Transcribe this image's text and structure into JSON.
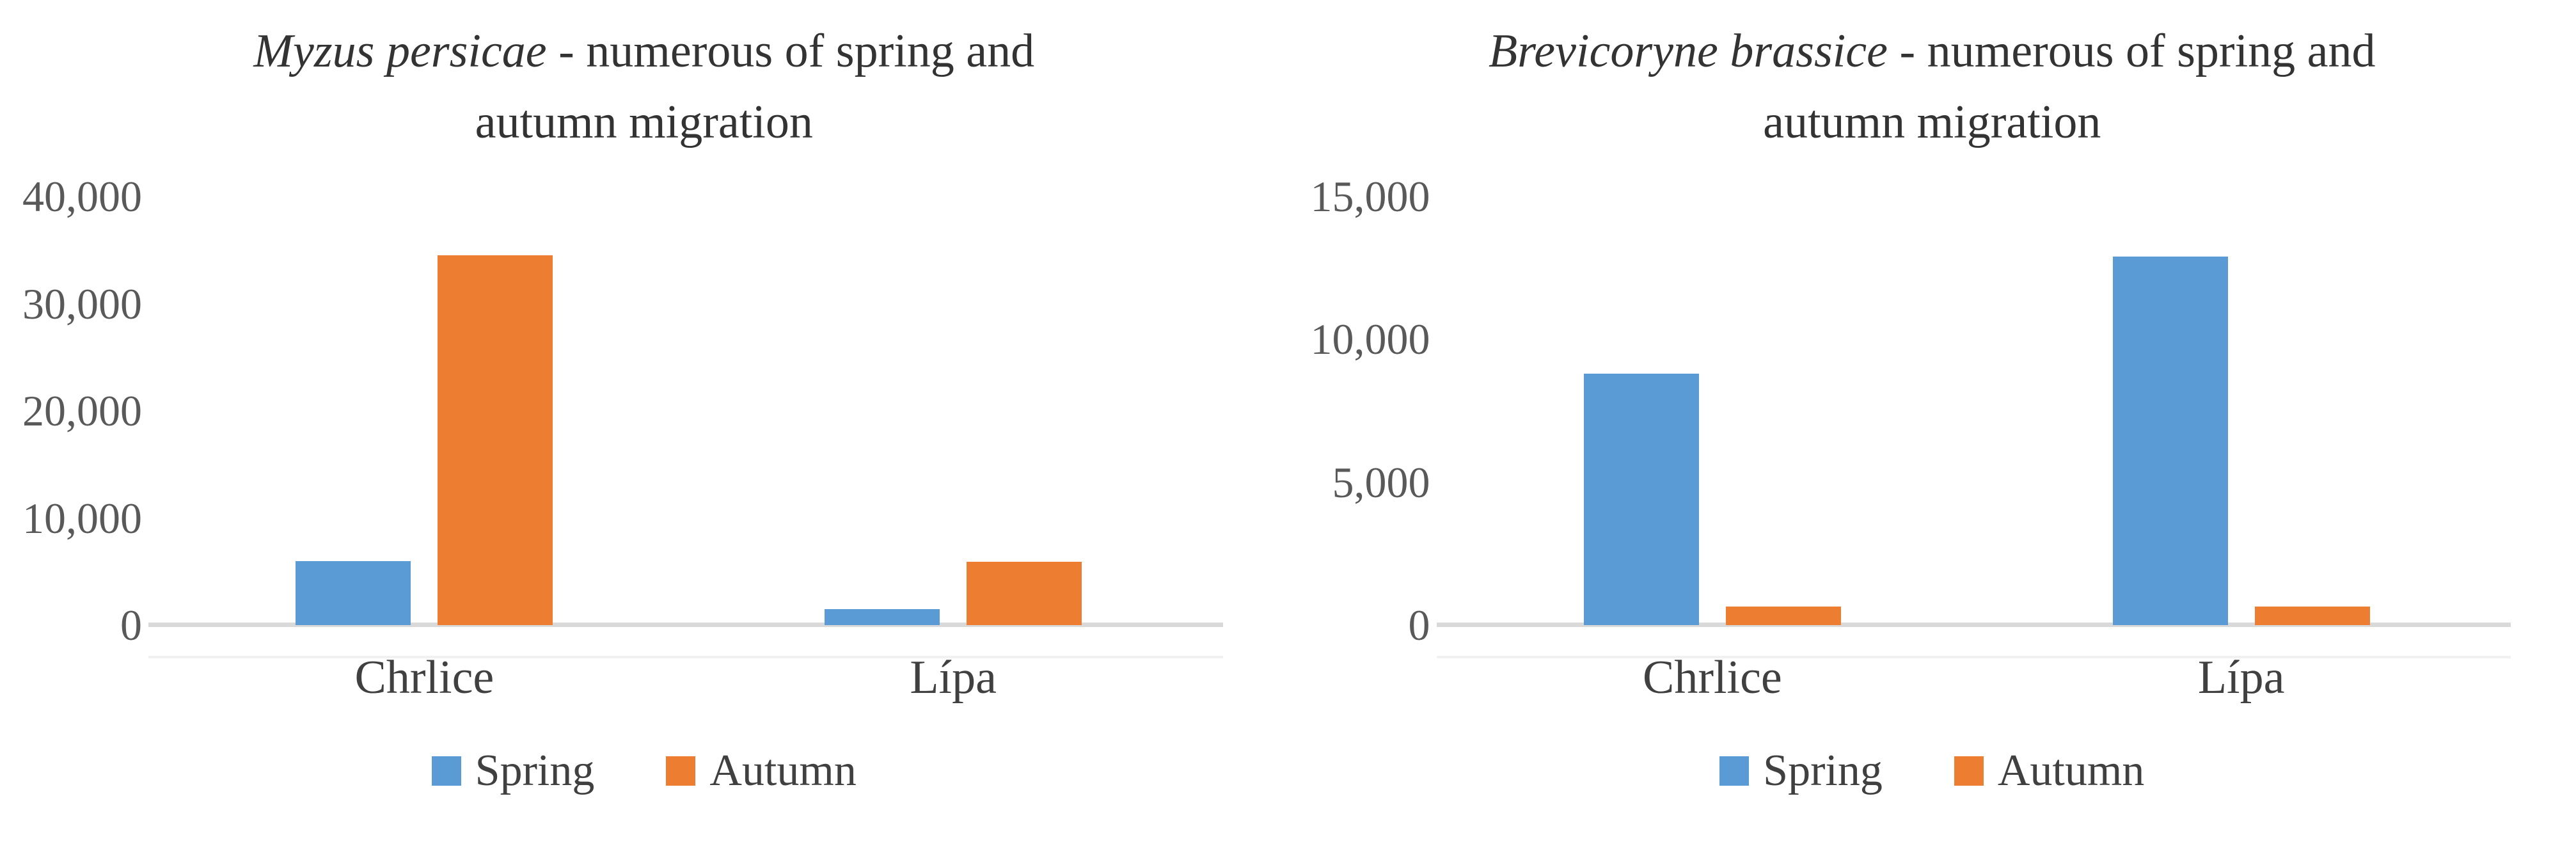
{
  "palette": {
    "spring_blue": "#5B9BD5",
    "autumn_orange": "#ED7D31",
    "axis_line_gray": "#D9D9D9",
    "tick_text_gray": "#595959",
    "label_text_gray": "#404040",
    "title_text_gray": "#333333"
  },
  "chart_data": [
    {
      "type": "bar",
      "title_italic": "Myzus persicae",
      "title_rest": " - numerous of spring and autumn migration",
      "categories": [
        "Chrlice",
        "Lípa"
      ],
      "series": [
        {
          "name": "Spring",
          "color": "#5B9BD5",
          "values": [
            6000,
            1500
          ]
        },
        {
          "name": "Autumn",
          "color": "#ED7D31",
          "values": [
            34500,
            5900
          ]
        }
      ],
      "ylim": [
        0,
        40000
      ],
      "yticks": [
        "0",
        "10,000",
        "20,000",
        "30,000",
        "40,000"
      ],
      "xlabel": "",
      "ylabel": "",
      "grid": false,
      "legend_position": "bottom"
    },
    {
      "type": "bar",
      "title_italic": "Brevicoryne brassice",
      "title_rest": " - numerous of spring and autumn migration",
      "categories": [
        "Chrlice",
        "Lípa"
      ],
      "series": [
        {
          "name": "Spring",
          "color": "#5B9BD5",
          "values": [
            8800,
            12900
          ]
        },
        {
          "name": "Autumn",
          "color": "#ED7D31",
          "values": [
            650,
            650
          ]
        }
      ],
      "ylim": [
        0,
        15000
      ],
      "yticks": [
        "0",
        "5,000",
        "10,000",
        "15,000"
      ],
      "xlabel": "",
      "ylabel": "",
      "grid": false,
      "legend_position": "bottom"
    }
  ]
}
